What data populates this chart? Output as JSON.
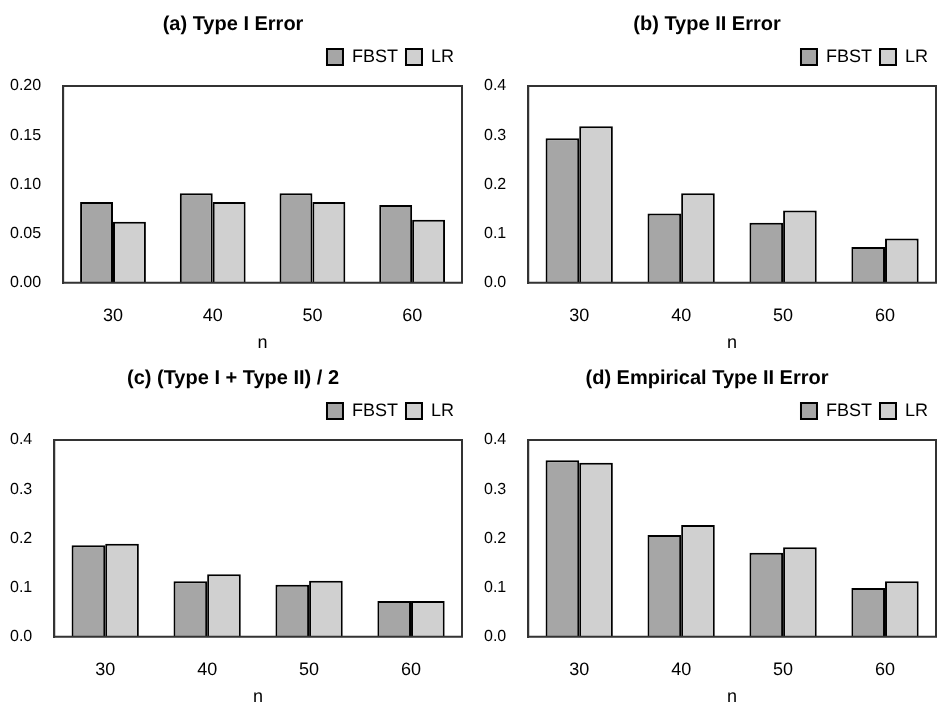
{
  "chart_data": [
    {
      "type": "bar",
      "title": "(a) Type I Error",
      "xlabel": "n",
      "categories": [
        "30",
        "40",
        "50",
        "60"
      ],
      "series": [
        {
          "name": "FBST",
          "color": "#a6a6a6",
          "values": [
            0.082,
            0.091,
            0.091,
            0.079
          ]
        },
        {
          "name": "LR",
          "color": "#d0d0d0",
          "values": [
            0.062,
            0.082,
            0.082,
            0.064
          ]
        }
      ],
      "ylim": [
        0,
        0.2
      ],
      "yticks": [
        {
          "value": 0,
          "label": "0.00"
        },
        {
          "value": 0.05,
          "label": "0.05"
        },
        {
          "value": 0.1,
          "label": "0.10"
        },
        {
          "value": 0.15,
          "label": "0.15"
        },
        {
          "value": 0.2,
          "label": "0.20"
        }
      ],
      "legend": "top right"
    },
    {
      "type": "bar",
      "title": "(b) Type II Error",
      "xlabel": "n",
      "categories": [
        "30",
        "40",
        "50",
        "60"
      ],
      "series": [
        {
          "name": "FBST",
          "color": "#a6a6a6",
          "values": [
            0.294,
            0.141,
            0.122,
            0.073
          ]
        },
        {
          "name": "LR",
          "color": "#d0d0d0",
          "values": [
            0.318,
            0.182,
            0.147,
            0.09
          ]
        }
      ],
      "ylim": [
        0,
        0.4
      ],
      "yticks": [
        {
          "value": 0,
          "label": "0.0"
        },
        0.1,
        0.2,
        0.3,
        0.4
      ],
      "legend": "top right"
    },
    {
      "type": "bar",
      "title": "(c) (Type I + Type II) / 2",
      "xlabel": "n",
      "categories": [
        "30",
        "40",
        "50",
        "60"
      ],
      "series": [
        {
          "name": "FBST",
          "color": "#a6a6a6",
          "values": [
            0.186,
            0.113,
            0.106,
            0.073
          ]
        },
        {
          "name": "LR",
          "color": "#d0d0d0",
          "values": [
            0.189,
            0.127,
            0.114,
            0.073
          ]
        }
      ],
      "ylim": [
        0,
        0.4
      ],
      "yticks": [
        {
          "value": 0,
          "label": "0.0"
        },
        0.1,
        0.2,
        0.3,
        0.4
      ],
      "legend": "top right"
    },
    {
      "type": "bar",
      "title": "(d) Empirical Type II Error",
      "xlabel": "n",
      "categories": [
        "30",
        "40",
        "50",
        "60"
      ],
      "series": [
        {
          "name": "FBST",
          "color": "#a6a6a6",
          "values": [
            0.359,
            0.207,
            0.171,
            0.099
          ]
        },
        {
          "name": "LR",
          "color": "#d0d0d0",
          "values": [
            0.354,
            0.227,
            0.182,
            0.113
          ]
        }
      ],
      "ylim": [
        0,
        0.4
      ],
      "yticks": [
        {
          "value": 0,
          "label": "0.0"
        },
        0.1,
        0.2,
        0.3,
        0.4
      ],
      "legend": "top right"
    }
  ]
}
